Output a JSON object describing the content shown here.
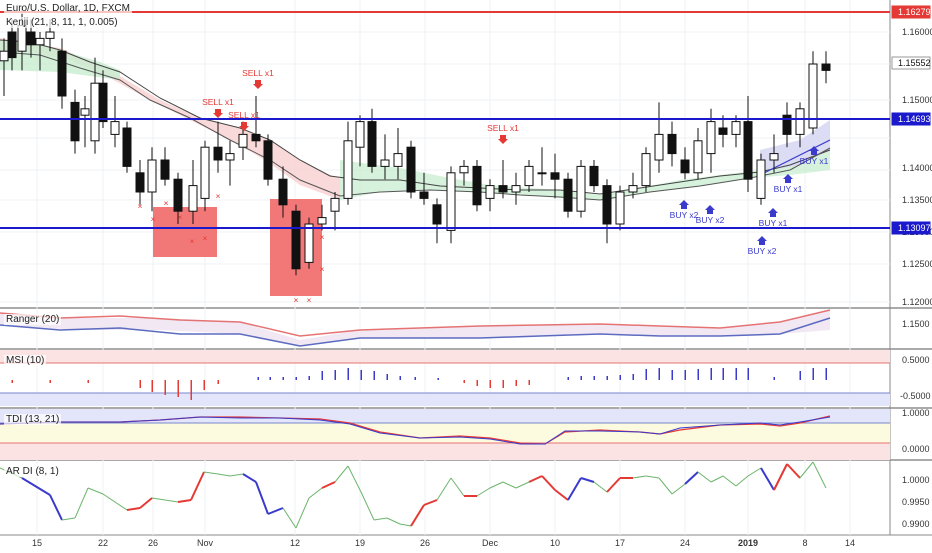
{
  "header": {
    "symbol_line": "Euro/U.S. Dollar, 1D, FXCM",
    "indicator_line": "Kenji (21, 8, 11, 1, 0.005)"
  },
  "panes": {
    "ranger_label": "Ranger (20)",
    "msi_label": "MSI (10)",
    "tdi_label": "TDI (13, 21)",
    "ardi_label": "AR DI (8, 1)"
  },
  "price_axis": {
    "ticks": [
      "1.16000",
      "1.15000",
      "1.14000",
      "1.13500",
      "1.13000",
      "1.12500",
      "1.12000"
    ],
    "ranger_ticks": [
      "1.1500"
    ],
    "msi_ticks": [
      "0.5000",
      "-0.5000"
    ],
    "tdi_ticks": [
      "1.0000",
      "0.0000"
    ],
    "ardi_ticks": [
      "1.0000",
      "0.9950",
      "0.9900"
    ]
  },
  "time_axis": {
    "labels": [
      "15",
      "22",
      "26",
      "Nov",
      "12",
      "19",
      "26",
      "Dec",
      "10",
      "17",
      "24",
      "2019",
      "8",
      "14"
    ]
  },
  "levels": {
    "red_line": "1.16279",
    "blue_upper": "1.14693",
    "blue_lower": "1.13097",
    "last_price": "1.15552"
  },
  "colors": {
    "up_candle": "#ffffff",
    "down_candle": "#111111",
    "red_level": "#e53935",
    "blue_level": "#1a1acc",
    "sell_signal": "#e53935",
    "buy_signal": "#3a3acc",
    "cloud_green": "#c8ecd0",
    "cloud_red": "#f8d0d0"
  },
  "signals": {
    "sell_labels": [
      "SELL x1",
      "SELL x1",
      "SELL x1",
      "SELL x1"
    ],
    "buy_labels": [
      "BUY x2",
      "BUY x2",
      "BUY x2",
      "BUY x1",
      "BUY x1",
      "BUY x1"
    ],
    "cross_marker": "×"
  }
}
